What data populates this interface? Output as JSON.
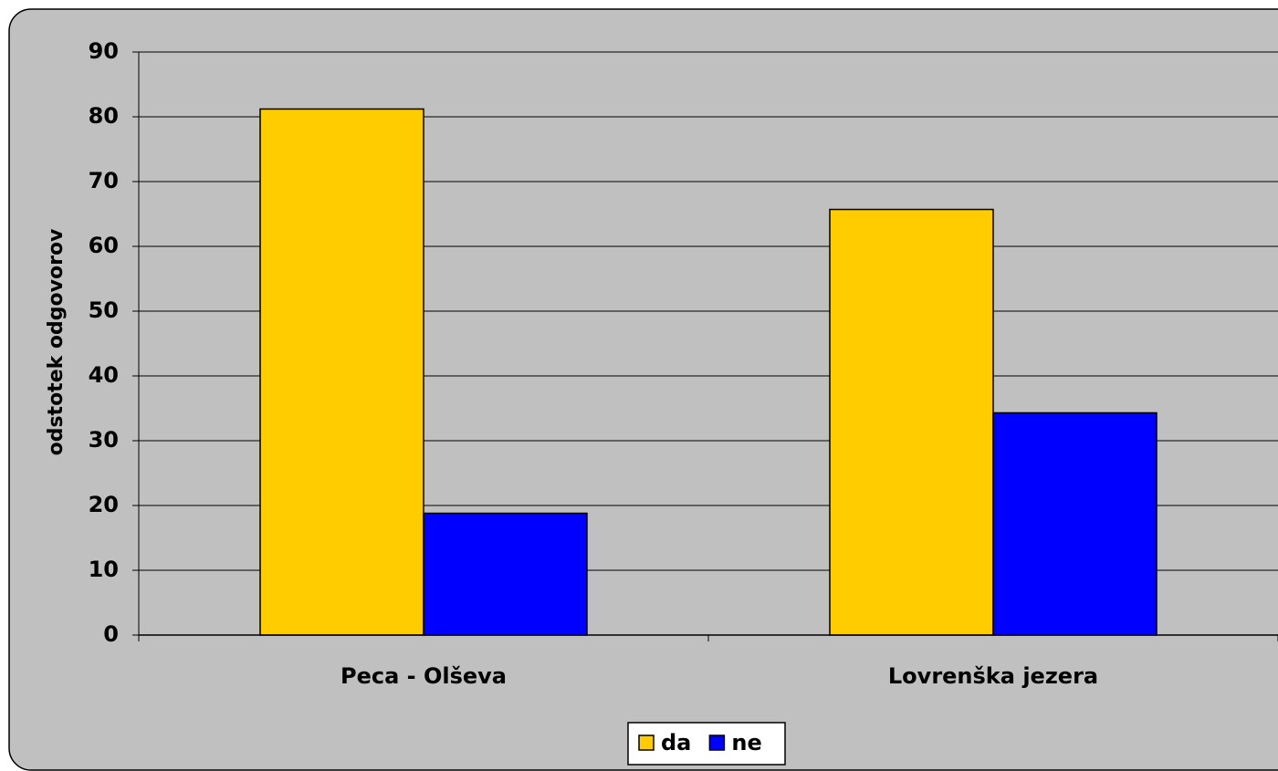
{
  "chart_data": {
    "type": "bar",
    "y_label": "odstotek odgovorov",
    "categories": [
      "Peca - Olševa",
      "Lovrenška jezera"
    ],
    "series": [
      {
        "name": "da",
        "color": "#FFCC00",
        "values": [
          81.2,
          65.7
        ]
      },
      {
        "name": "ne",
        "color": "#0000FF",
        "values": [
          18.8,
          34.3
        ]
      }
    ],
    "ylim": [
      0,
      90
    ],
    "yticks": [
      0,
      10,
      20,
      30,
      40,
      50,
      60,
      70,
      80,
      90
    ],
    "grid": true,
    "legend": "bottom"
  }
}
